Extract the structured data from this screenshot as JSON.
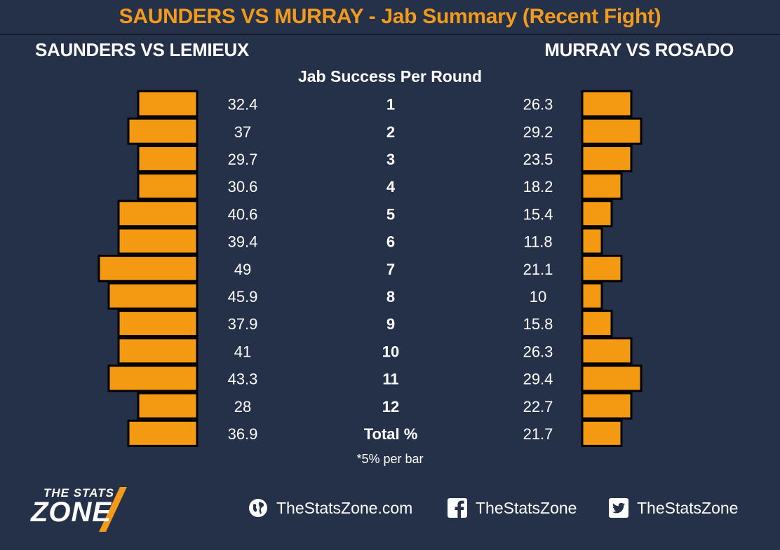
{
  "title": "SAUNDERS VS MURRAY - Jab Summary (Recent Fight)",
  "left_fighter": "SAUNDERS VS LEMIEUX",
  "right_fighter": "MURRAY VS ROSADO",
  "subtitle": "Jab Success Per Round",
  "footnote": "*5% per bar",
  "footer": {
    "logo_top": "THE STATS",
    "logo_bottom": "ZONE",
    "website": "TheStatsZone.com",
    "facebook": "TheStatsZone",
    "twitter": "TheStatsZone"
  },
  "icons": {
    "website": "globe-icon",
    "facebook": "facebook-icon",
    "twitter": "twitter-icon"
  },
  "colors": {
    "background": "#253149",
    "accent": "#f29a1c",
    "bar": "#f39a12",
    "text": "#ffffff"
  },
  "chart_data": {
    "type": "bar",
    "orientation": "horizontal-mirrored",
    "categories": [
      "1",
      "2",
      "3",
      "4",
      "5",
      "6",
      "7",
      "8",
      "9",
      "10",
      "11",
      "12",
      "Total %"
    ],
    "bar_step": 5,
    "series": [
      {
        "name": "SAUNDERS VS LEMIEUX",
        "values": [
          32.4,
          37,
          29.7,
          30.6,
          40.6,
          39.4,
          49,
          45.9,
          37.9,
          41,
          43.3,
          28,
          36.9
        ]
      },
      {
        "name": "MURRAY VS ROSADO",
        "values": [
          26.3,
          29.2,
          23.5,
          18.2,
          15.4,
          11.8,
          21.1,
          10,
          15.8,
          26.3,
          29.4,
          22.7,
          21.7
        ]
      }
    ]
  }
}
